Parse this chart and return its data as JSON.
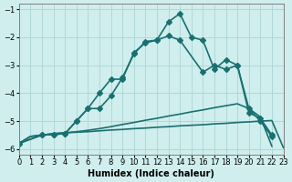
{
  "xlabel": "Humidex (Indice chaleur)",
  "ylabel": "",
  "xlim": [
    0,
    23
  ],
  "ylim": [
    -6.2,
    -0.8
  ],
  "yticks": [
    -6,
    -5,
    -4,
    -3,
    -2,
    -1
  ],
  "xticks": [
    0,
    1,
    2,
    3,
    4,
    5,
    6,
    7,
    8,
    9,
    10,
    11,
    12,
    13,
    14,
    15,
    16,
    17,
    18,
    19,
    20,
    21,
    22,
    23
  ],
  "bg_color": "#d0eeee",
  "grid_color": "#b0d8d8",
  "line_color": "#1a7070",
  "series": [
    {
      "x": [
        0,
        1,
        2,
        3,
        4,
        5,
        6,
        7,
        8,
        9,
        10,
        11,
        12,
        13,
        14,
        15,
        16,
        17,
        18,
        19,
        20,
        21,
        22,
        23
      ],
      "y": [
        -5.8,
        -5.55,
        -5.5,
        -5.45,
        -5.42,
        -5.4,
        -5.38,
        -5.35,
        -5.32,
        -5.3,
        -5.27,
        -5.25,
        -5.22,
        -5.2,
        -5.17,
        -5.15,
        -5.13,
        -5.1,
        -5.08,
        -5.05,
        -5.03,
        -5.0,
        -4.98,
        -5.95
      ],
      "marker": null,
      "linewidth": 1.2
    },
    {
      "x": [
        0,
        1,
        2,
        3,
        4,
        5,
        6,
        7,
        8,
        9,
        10,
        11,
        12,
        13,
        14,
        15,
        16,
        17,
        18,
        19,
        20,
        21,
        22,
        23
      ],
      "y": [
        -5.8,
        -5.55,
        -5.5,
        -5.45,
        -5.42,
        -5.38,
        -5.33,
        -5.27,
        -5.2,
        -5.12,
        -5.05,
        -4.97,
        -4.9,
        -4.82,
        -4.75,
        -4.67,
        -4.6,
        -4.52,
        -4.45,
        -4.38,
        -4.55,
        -4.85,
        -5.9,
        null
      ],
      "marker": null,
      "linewidth": 1.2
    },
    {
      "x": [
        0,
        2,
        3,
        4,
        5,
        6,
        7,
        8,
        9,
        10,
        11,
        12,
        13,
        14,
        15,
        16,
        17,
        18,
        19,
        20,
        21,
        22
      ],
      "y": [
        -5.8,
        -5.5,
        -5.48,
        -5.45,
        -5.0,
        -4.55,
        -4.0,
        -3.5,
        -3.5,
        -2.55,
        -2.2,
        -2.1,
        -1.45,
        -1.15,
        -2.0,
        -2.1,
        -3.15,
        -2.8,
        -3.0,
        -4.55,
        -5.0,
        -5.55
      ],
      "marker": "D",
      "markersize": 3,
      "linewidth": 1.2
    },
    {
      "x": [
        0,
        2,
        3,
        4,
        5,
        6,
        7,
        8,
        9,
        10,
        11,
        12,
        13,
        14,
        16,
        17,
        18,
        19,
        20,
        21,
        22
      ],
      "y": [
        -5.8,
        -5.5,
        -5.48,
        -5.45,
        -5.0,
        -4.55,
        -4.55,
        -4.1,
        -3.45,
        -2.6,
        -2.15,
        -2.1,
        -1.95,
        -2.1,
        -3.25,
        -3.0,
        -3.15,
        -3.0,
        -4.7,
        -4.9,
        -5.5
      ],
      "marker": "D",
      "markersize": 3,
      "linewidth": 1.2
    }
  ]
}
